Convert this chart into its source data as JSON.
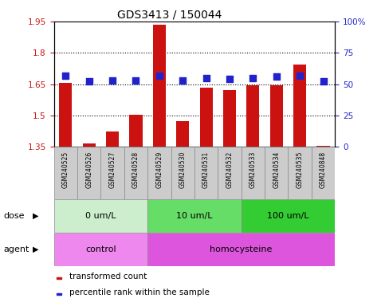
{
  "title": "GDS3413 / 150044",
  "samples": [
    "GSM240525",
    "GSM240526",
    "GSM240527",
    "GSM240528",
    "GSM240529",
    "GSM240530",
    "GSM240531",
    "GSM240532",
    "GSM240533",
    "GSM240534",
    "GSM240535",
    "GSM240848"
  ],
  "transformed_count": [
    1.655,
    1.365,
    1.425,
    1.505,
    1.935,
    1.475,
    1.635,
    1.62,
    1.643,
    1.645,
    1.745,
    1.355
  ],
  "percentile_rank": [
    57,
    52,
    53,
    53,
    57,
    53,
    55,
    54,
    55,
    56,
    57,
    52
  ],
  "ylim_left": [
    1.35,
    1.95
  ],
  "ylim_right": [
    0,
    100
  ],
  "yticks_left": [
    1.35,
    1.5,
    1.65,
    1.8,
    1.95
  ],
  "yticks_right": [
    0,
    25,
    50,
    75,
    100
  ],
  "ytick_labels_left": [
    "1.35",
    "1.5",
    "1.65",
    "1.8",
    "1.95"
  ],
  "ytick_labels_right": [
    "0",
    "25",
    "50",
    "75",
    "100%"
  ],
  "bar_color": "#cc1111",
  "dot_color": "#2222cc",
  "background_color": "#ffffff",
  "dose_groups": [
    {
      "label": "0 um/L",
      "start": 0,
      "end": 4,
      "color": "#cceecc"
    },
    {
      "label": "10 um/L",
      "start": 4,
      "end": 8,
      "color": "#66dd66"
    },
    {
      "label": "100 um/L",
      "start": 8,
      "end": 12,
      "color": "#33cc33"
    }
  ],
  "agent_groups": [
    {
      "label": "control",
      "start": 0,
      "end": 4,
      "color": "#ee88ee"
    },
    {
      "label": "homocysteine",
      "start": 4,
      "end": 12,
      "color": "#dd55dd"
    }
  ],
  "dose_label": "dose",
  "agent_label": "agent",
  "legend_items": [
    {
      "color": "#cc1111",
      "label": "transformed count"
    },
    {
      "color": "#2222cc",
      "label": "percentile rank within the sample"
    }
  ],
  "bar_width": 0.55,
  "dot_size": 35,
  "sample_bg_color": "#cccccc",
  "title_fontsize": 10,
  "tick_fontsize": 7.5,
  "label_fontsize": 8,
  "sample_fontsize": 5.5,
  "row_fontsize": 8
}
